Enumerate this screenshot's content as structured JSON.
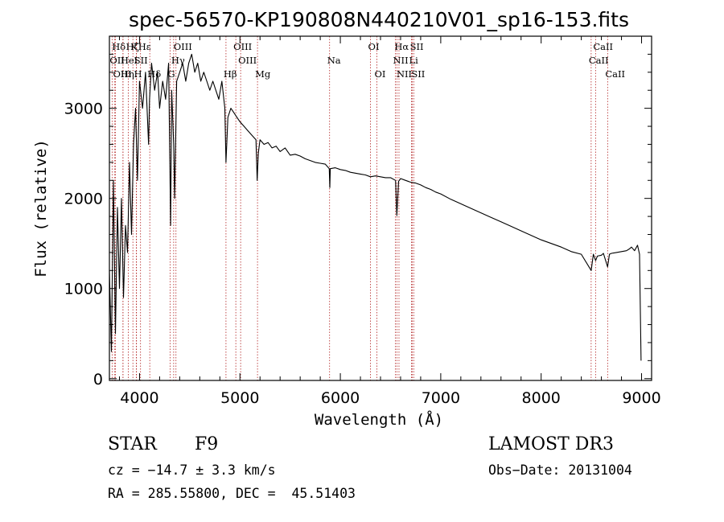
{
  "chart_data": {
    "type": "line",
    "title": "spec-56570-KP190808N440210V01_sp16-153.fits",
    "xlabel": "Wavelength (Å)",
    "ylabel": "Flux (relative)",
    "xlim": [
      3700,
      9100
    ],
    "ylim": [
      -20,
      3800
    ],
    "xticks": [
      4000,
      5000,
      6000,
      7000,
      8000,
      9000
    ],
    "yticks": [
      0,
      1000,
      2000,
      3000
    ],
    "series": [
      {
        "name": "Flux",
        "x": [
          3700,
          3720,
          3740,
          3760,
          3780,
          3800,
          3820,
          3840,
          3860,
          3880,
          3900,
          3920,
          3940,
          3960,
          3980,
          4000,
          4030,
          4060,
          4090,
          4100,
          4120,
          4150,
          4180,
          4200,
          4230,
          4260,
          4290,
          4310,
          4320,
          4340,
          4350,
          4370,
          4400,
          4430,
          4460,
          4490,
          4520,
          4550,
          4580,
          4610,
          4640,
          4670,
          4700,
          4730,
          4760,
          4790,
          4820,
          4850,
          4861,
          4880,
          4910,
          4940,
          4970,
          5000,
          5040,
          5080,
          5120,
          5160,
          5172,
          5183,
          5200,
          5240,
          5280,
          5320,
          5360,
          5400,
          5450,
          5500,
          5550,
          5600,
          5650,
          5700,
          5750,
          5800,
          5850,
          5890,
          5895,
          5900,
          5950,
          6000,
          6050,
          6100,
          6150,
          6200,
          6250,
          6300,
          6350,
          6400,
          6450,
          6500,
          6550,
          6563,
          6580,
          6600,
          6650,
          6700,
          6750,
          6800,
          6850,
          6900,
          6950,
          7000,
          7100,
          7200,
          7300,
          7400,
          7500,
          7600,
          7700,
          7800,
          7900,
          8000,
          8100,
          8200,
          8300,
          8400,
          8498,
          8520,
          8542,
          8560,
          8600,
          8620,
          8662,
          8680,
          8700,
          8750,
          8800,
          8850,
          8880,
          8900,
          8930,
          8960,
          8980,
          8995
        ],
        "y": [
          1200,
          300,
          2200,
          500,
          1900,
          1000,
          2000,
          900,
          1700,
          1400,
          2400,
          1600,
          2600,
          3000,
          2200,
          3300,
          3000,
          3400,
          2600,
          3100,
          3500,
          3200,
          3400,
          3000,
          3300,
          3100,
          3500,
          1700,
          3200,
          2600,
          2000,
          3300,
          3400,
          3500,
          3300,
          3500,
          3600,
          3400,
          3500,
          3300,
          3400,
          3300,
          3200,
          3300,
          3200,
          3100,
          3300,
          3000,
          2400,
          2900,
          3000,
          2950,
          2900,
          2850,
          2800,
          2750,
          2700,
          2650,
          2200,
          2500,
          2650,
          2600,
          2620,
          2560,
          2580,
          2520,
          2560,
          2480,
          2490,
          2470,
          2440,
          2420,
          2400,
          2390,
          2380,
          2330,
          2120,
          2330,
          2340,
          2320,
          2310,
          2290,
          2280,
          2270,
          2260,
          2240,
          2250,
          2240,
          2230,
          2230,
          2200,
          1810,
          2190,
          2220,
          2200,
          2180,
          2170,
          2150,
          2120,
          2100,
          2070,
          2050,
          1990,
          1940,
          1890,
          1840,
          1790,
          1740,
          1690,
          1640,
          1590,
          1540,
          1500,
          1460,
          1410,
          1380,
          1200,
          1380,
          1310,
          1360,
          1370,
          1390,
          1240,
          1380,
          1390,
          1400,
          1410,
          1420,
          1440,
          1460,
          1420,
          1480,
          1380,
          200
        ]
      }
    ],
    "lines": [
      {
        "name": "Hδ",
        "x": 3750,
        "row": 1
      },
      {
        "name": "OII",
        "x": 3727,
        "row": 2
      },
      {
        "name": "OIII",
        "x": 3760,
        "row": 3
      },
      {
        "name": "HeI",
        "x": 3835,
        "row": 2
      },
      {
        "name": "Hη",
        "x": 3835,
        "row": 3
      },
      {
        "name": "K",
        "x": 3934,
        "row": 1
      },
      {
        "name": "SII",
        "x": 3970,
        "row": 2
      },
      {
        "name": "Hζ",
        "x": 3889,
        "row": 1
      },
      {
        "name": "H",
        "x": 3968,
        "row": 3
      },
      {
        "name": "Hε",
        "x": 4010,
        "row": 1
      },
      {
        "name": "Hδ",
        "x": 4102,
        "row": 3
      },
      {
        "name": "OIII",
        "x": 4363,
        "row": 1
      },
      {
        "name": "Hγ",
        "x": 4340,
        "row": 2
      },
      {
        "name": "G",
        "x": 4304,
        "row": 3
      },
      {
        "name": "Hβ",
        "x": 4861,
        "row": 3
      },
      {
        "name": "OIII",
        "x": 4959,
        "row": 1
      },
      {
        "name": "OIII",
        "x": 5007,
        "row": 2
      },
      {
        "name": "Mg",
        "x": 5175,
        "row": 3
      },
      {
        "name": "Na",
        "x": 5893,
        "row": 2
      },
      {
        "name": "OI",
        "x": 6300,
        "row": 1
      },
      {
        "name": "OI",
        "x": 6364,
        "row": 3
      },
      {
        "name": "Hα",
        "x": 6563,
        "row": 1
      },
      {
        "name": "NII",
        "x": 6548,
        "row": 2
      },
      {
        "name": "NII",
        "x": 6584,
        "row": 3
      },
      {
        "name": "SII",
        "x": 6717,
        "row": 1
      },
      {
        "name": "Li",
        "x": 6708,
        "row": 2
      },
      {
        "name": "SII",
        "x": 6731,
        "row": 3
      },
      {
        "name": "CaII",
        "x": 8542,
        "row": 1
      },
      {
        "name": "CaII",
        "x": 8498,
        "row": 2
      },
      {
        "name": "CaII",
        "x": 8662,
        "row": 3
      }
    ]
  },
  "info": {
    "object_class": "STAR",
    "subclass": "F9",
    "survey": "LAMOST DR3",
    "cz": "cz = −14.7 ± 3.3 km/s",
    "obs_date": "Obs−Date: 20131004",
    "coords": "RA = 285.55800, DEC =  45.51403"
  },
  "colors": {
    "spectrum": "#000000",
    "line_marker": "#b22222"
  }
}
